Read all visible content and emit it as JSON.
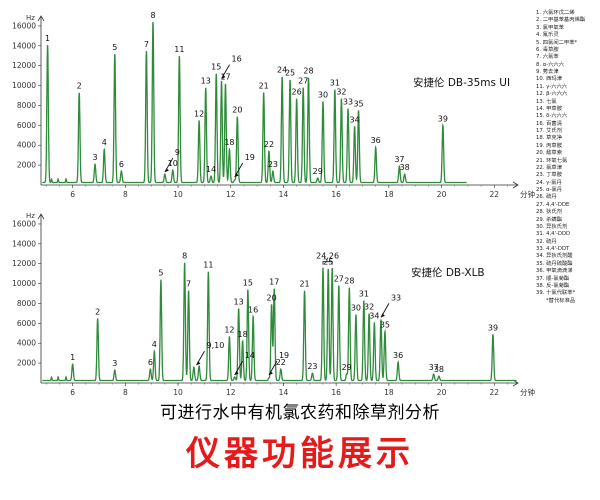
{
  "chart_data": [
    {
      "type": "line",
      "column_label": "DB-35ms UI",
      "label": "安捷伦 DB-35ms UI",
      "yunit": "Hz",
      "xunit": "分钟",
      "xlim": [
        4.8,
        22.9
      ],
      "ylim": [
        0,
        17000
      ],
      "xticks": [
        6,
        8,
        10,
        12,
        14,
        16,
        18,
        20,
        22
      ],
      "yticks": [
        2000,
        4000,
        6000,
        8000,
        10000,
        12000,
        14000,
        16000
      ],
      "peaks": [
        {
          "id": "1",
          "x": 5.05,
          "y": 14100
        },
        {
          "id": "2",
          "x": 6.25,
          "y": 9300
        },
        {
          "id": "3",
          "x": 6.85,
          "y": 2100
        },
        {
          "id": "4",
          "x": 7.2,
          "y": 3600
        },
        {
          "id": "5",
          "x": 7.6,
          "y": 13200
        },
        {
          "id": "6",
          "x": 7.85,
          "y": 1400
        },
        {
          "id": "7",
          "x": 8.8,
          "y": 13500
        },
        {
          "id": "8",
          "x": 9.05,
          "y": 16400
        },
        {
          "id": "9",
          "x": 9.5,
          "y": 1100
        },
        {
          "id": "10",
          "x": 9.8,
          "y": 1500
        },
        {
          "id": "11",
          "x": 10.05,
          "y": 13000
        },
        {
          "id": "12",
          "x": 10.8,
          "y": 6500
        },
        {
          "id": "13",
          "x": 11.05,
          "y": 9800
        },
        {
          "id": "14",
          "x": 11.25,
          "y": 900
        },
        {
          "id": "15",
          "x": 11.45,
          "y": 11200
        },
        {
          "id": "16",
          "x": 11.65,
          "y": 10500
        },
        {
          "id": "17",
          "x": 11.8,
          "y": 10200
        },
        {
          "id": "18",
          "x": 11.95,
          "y": 3600
        },
        {
          "id": "19",
          "x": 12.15,
          "y": 500
        },
        {
          "id": "20",
          "x": 12.25,
          "y": 6900
        },
        {
          "id": "21",
          "x": 13.25,
          "y": 9300
        },
        {
          "id": "22",
          "x": 13.45,
          "y": 3400
        },
        {
          "id": "23",
          "x": 13.6,
          "y": 1400
        },
        {
          "id": "24",
          "x": 13.95,
          "y": 10900
        },
        {
          "id": "25",
          "x": 14.25,
          "y": 10600
        },
        {
          "id": "26",
          "x": 14.5,
          "y": 8700
        },
        {
          "id": "27",
          "x": 14.75,
          "y": 9800
        },
        {
          "id": "28",
          "x": 14.95,
          "y": 10800
        },
        {
          "id": "29",
          "x": 15.3,
          "y": 700
        },
        {
          "id": "30",
          "x": 15.5,
          "y": 8400
        },
        {
          "id": "31",
          "x": 15.95,
          "y": 9600
        },
        {
          "id": "32",
          "x": 16.2,
          "y": 8700
        },
        {
          "id": "33",
          "x": 16.45,
          "y": 7700
        },
        {
          "id": "34",
          "x": 16.7,
          "y": 5900
        },
        {
          "id": "35",
          "x": 16.85,
          "y": 7500
        },
        {
          "id": "36",
          "x": 17.5,
          "y": 3800
        },
        {
          "id": "37",
          "x": 18.4,
          "y": 1900
        },
        {
          "id": "38",
          "x": 18.6,
          "y": 1100
        },
        {
          "id": "39",
          "x": 20.05,
          "y": 6000
        }
      ],
      "annotations": [
        {
          "label": "9",
          "arrow_to": 9.5
        },
        {
          "label": "16",
          "arrow_to": 11.65
        },
        {
          "label": "19",
          "arrow_to": 12.15
        }
      ]
    },
    {
      "type": "line",
      "column_label": "DB-XLB",
      "label": "安捷伦 DB-XLB",
      "yunit": "Hz",
      "xunit": "分钟",
      "xlim": [
        4.8,
        22.9
      ],
      "ylim": [
        0,
        17000
      ],
      "xticks": [
        6,
        8,
        10,
        12,
        14,
        16,
        18,
        20,
        22
      ],
      "yticks": [
        2000,
        4000,
        6000,
        8000,
        10000,
        12000,
        14000,
        16000
      ],
      "peaks": [
        {
          "id": "1",
          "x": 6.0,
          "y": 1900
        },
        {
          "id": "2",
          "x": 6.95,
          "y": 6500
        },
        {
          "id": "3",
          "x": 7.6,
          "y": 1300
        },
        {
          "id": "4",
          "x": 9.1,
          "y": 3200
        },
        {
          "id": "5",
          "x": 9.35,
          "y": 10400
        },
        {
          "id": "6",
          "x": 8.95,
          "y": 1400
        },
        {
          "id": "7",
          "x": 10.4,
          "y": 9300
        },
        {
          "id": "8",
          "x": 10.25,
          "y": 12100
        },
        {
          "id": "9",
          "x": 10.6,
          "y": 1600
        },
        {
          "id": "10",
          "x": 10.8,
          "y": 1700
        },
        {
          "id": "11",
          "x": 11.15,
          "y": 11200
        },
        {
          "id": "12",
          "x": 11.95,
          "y": 4700
        },
        {
          "id": "13",
          "x": 12.3,
          "y": 7500
        },
        {
          "id": "14",
          "x": 12.15,
          "y": 600
        },
        {
          "id": "15",
          "x": 12.65,
          "y": 9400
        },
        {
          "id": "16",
          "x": 12.85,
          "y": 6700
        },
        {
          "id": "17",
          "x": 13.65,
          "y": 9500
        },
        {
          "id": "18",
          "x": 12.45,
          "y": 4200
        },
        {
          "id": "19",
          "x": 13.45,
          "y": 500
        },
        {
          "id": "20",
          "x": 13.55,
          "y": 7900
        },
        {
          "id": "21",
          "x": 14.8,
          "y": 9300
        },
        {
          "id": "22",
          "x": 13.9,
          "y": 1400
        },
        {
          "id": "23",
          "x": 15.1,
          "y": 1000
        },
        {
          "id": "24",
          "x": 15.5,
          "y": 11600
        },
        {
          "id": "25",
          "x": 15.7,
          "y": 11500
        },
        {
          "id": "26",
          "x": 15.85,
          "y": 11600
        },
        {
          "id": "27",
          "x": 16.1,
          "y": 9800
        },
        {
          "id": "28",
          "x": 16.5,
          "y": 9600
        },
        {
          "id": "29",
          "x": 16.4,
          "y": 900
        },
        {
          "id": "30",
          "x": 16.75,
          "y": 6900
        },
        {
          "id": "31",
          "x": 17.05,
          "y": 8300
        },
        {
          "id": "32",
          "x": 17.25,
          "y": 7000
        },
        {
          "id": "33",
          "x": 17.7,
          "y": 6400
        },
        {
          "id": "34",
          "x": 17.45,
          "y": 6100
        },
        {
          "id": "35",
          "x": 17.85,
          "y": 5200
        },
        {
          "id": "36",
          "x": 18.35,
          "y": 2100
        },
        {
          "id": "37",
          "x": 19.7,
          "y": 900
        },
        {
          "id": "38",
          "x": 19.9,
          "y": 700
        },
        {
          "id": "39",
          "x": 21.95,
          "y": 4900
        }
      ],
      "annotations": [
        {
          "label": "9,10",
          "arrow_to": 10.7
        },
        {
          "label": "14",
          "arrow_to": 12.15
        },
        {
          "label": "19",
          "arrow_to": 13.45
        },
        {
          "label": "24,26",
          "bracket": [
            15.5,
            15.85
          ]
        },
        {
          "label": "33",
          "arrow_to": 17.7
        }
      ]
    }
  ],
  "compound_list": [
    "1. 六氯环戊二烯",
    "2. 二甲基苯基丙烯酯",
    "3. 氯甲氧苯",
    "4. 氟乐灵",
    "5. 四氯间二甲苯*",
    "6. 毒草胺",
    "7. 六氯苯",
    "8. α-六六六",
    "9. 莠去津",
    "10. 西玛津",
    "11. γ-六六六",
    "12. β-六六六",
    "13. 七氯",
    "14. 甲草胺",
    "15. δ-六六六",
    "16. 百菌清",
    "17. 艾氏剂",
    "18. 草克净",
    "19. 丙草胺",
    "20. 敌草索",
    "21. 环氧七氯",
    "22. 氯草津",
    "23. 丁草胺",
    "24. γ-氯丹",
    "25. α-氯丹",
    "26. 硫丹",
    "27. 4,4'-DDE",
    "28. 狄氏剂",
    "29. 杀螨酯",
    "30. 异狄氏剂",
    "31. 4,4'-DDD",
    "32. 硫丹",
    "33. 4,4'-DDT",
    "34. 异狄氏剂醛",
    "35. 硫丹硫酸酯",
    "36. 甲氧滴滴涕",
    "37. 顺-氯菊酯",
    "38. 反-氯菊酯",
    "39. 十氯代联苯*"
  ],
  "compound_note": "*替代标准品",
  "caption": "可进行水中有机氯农药和除草剂分析",
  "headline": "仪器功能展示",
  "colors": {
    "trace": "#2e8b3a",
    "axis": "#333333",
    "headline": "#e51a1a"
  }
}
